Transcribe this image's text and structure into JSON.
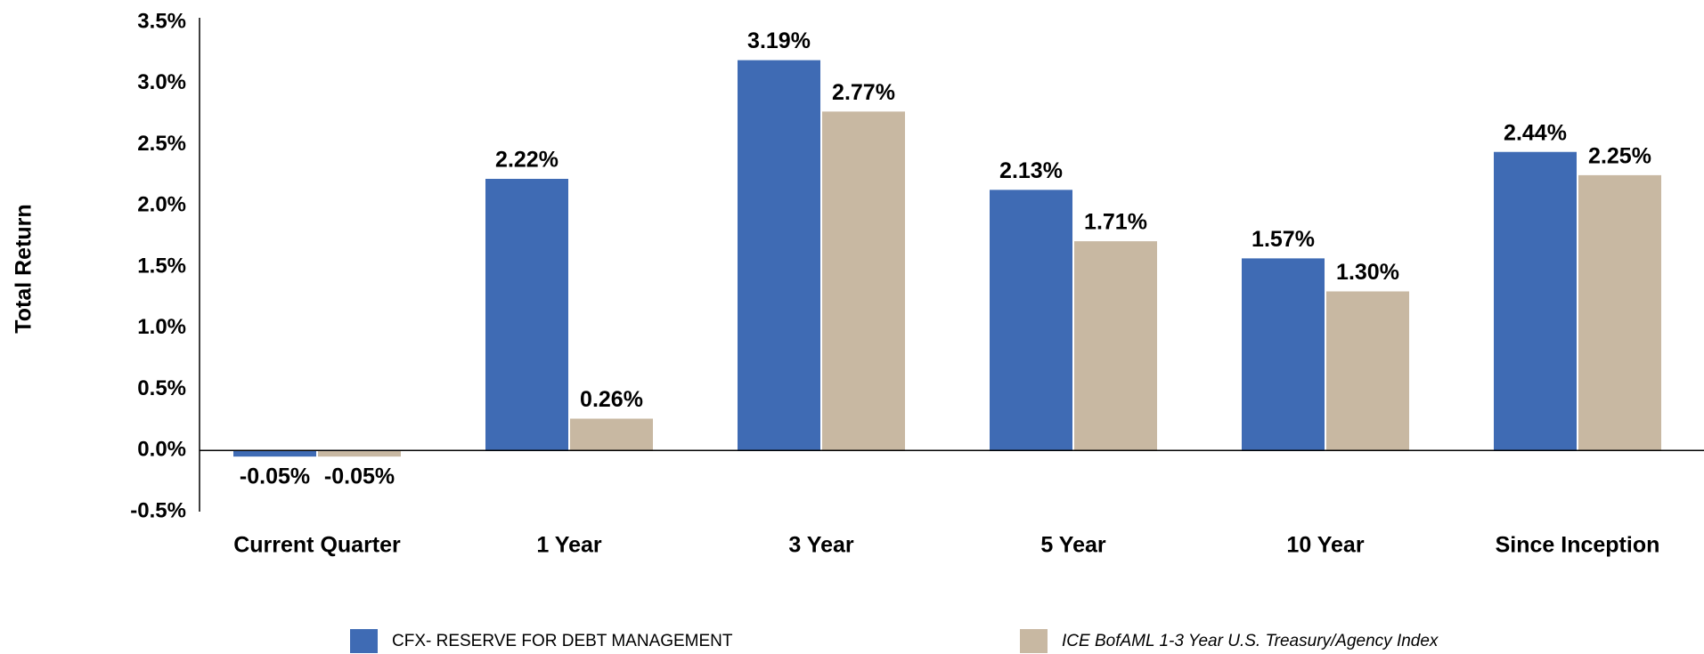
{
  "chart_data": {
    "type": "bar",
    "y_label": "Total Return",
    "categories": [
      "Current Quarter",
      "1 Year",
      "3 Year",
      "5 Year",
      "10 Year",
      "Since Inception"
    ],
    "series": [
      {
        "name": "CFX- RESERVE FOR DEBT MANAGEMENT",
        "color": "#3f6bb4",
        "values": [
          -0.05,
          2.22,
          3.19,
          2.13,
          1.57,
          2.44
        ],
        "value_labels": [
          "-0.05%",
          "2.22%",
          "3.19%",
          "2.13%",
          "1.57%",
          "2.44%"
        ]
      },
      {
        "name": "ICE BofAML 1-3 Year U.S. Treasury/Agency Index",
        "color": "#c8b8a2",
        "values": [
          -0.05,
          0.26,
          2.77,
          1.71,
          1.3,
          2.25
        ],
        "value_labels": [
          "-0.05%",
          "0.26%",
          "2.77%",
          "1.71%",
          "1.30%",
          "2.25%"
        ]
      }
    ],
    "ylim": [
      -0.5,
      3.5
    ],
    "yticks": [
      {
        "value": -0.5,
        "label": "-0.5%"
      },
      {
        "value": 0,
        "label": "0.0%"
      },
      {
        "value": 0.5,
        "label": "0.5%"
      },
      {
        "value": 1,
        "label": "1.0%"
      },
      {
        "value": 1.5,
        "label": "1.5%"
      },
      {
        "value": 2,
        "label": "2.0%"
      },
      {
        "value": 2.5,
        "label": "2.5%"
      },
      {
        "value": 3,
        "label": "3.0%"
      },
      {
        "value": 3.5,
        "label": "3.5%"
      }
    ],
    "grid": false,
    "legend": "bottom"
  }
}
